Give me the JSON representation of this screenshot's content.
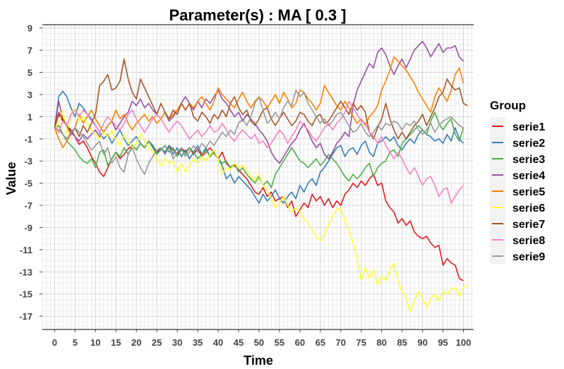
{
  "chart_data": {
    "type": "line",
    "title": "Parameter(s) :  MA [ 0.3 ]",
    "xlabel": "Time",
    "ylabel": "Value",
    "xlim": [
      -3,
      102.5
    ],
    "ylim": [
      -18.2,
      9.3
    ],
    "x_ticks": [
      0,
      5,
      10,
      15,
      20,
      25,
      30,
      35,
      40,
      45,
      50,
      55,
      60,
      65,
      70,
      75,
      80,
      85,
      90,
      95,
      100
    ],
    "y_ticks": [
      9,
      7,
      5,
      3,
      1,
      -1,
      -3,
      -5,
      -7,
      -9,
      -11,
      -13,
      -15,
      -17
    ],
    "grid": true,
    "legend": {
      "title": "Group",
      "placement": "right"
    },
    "x_start": 0,
    "x_step": 1,
    "series": [
      {
        "name": "serie1",
        "color": "#E41A1C",
        "values": [
          0,
          1.2,
          0.6,
          0.2,
          -0.2,
          -0.8,
          -1.5,
          -1.2,
          -1.8,
          -2.6,
          -3.2,
          -4,
          -4.4,
          -3.6,
          -2.8,
          -2.2,
          -2.8,
          -2.4,
          -1.9,
          -1.6,
          -2,
          -1.4,
          -1.8,
          -1.2,
          -1.6,
          -2.2,
          -1.8,
          -2.3,
          -1.6,
          -2,
          -2.4,
          -1.8,
          -2.2,
          -1.8,
          -2.4,
          -1.9,
          -2.6,
          -2.2,
          -1.8,
          -2.3,
          -2.8,
          -2.2,
          -3.2,
          -3.6,
          -3.4,
          -3.8,
          -4.2,
          -4.6,
          -5.2,
          -5.8,
          -6,
          -5.4,
          -6.2,
          -5.8,
          -6.6,
          -6.4,
          -6.2,
          -7.2,
          -6.6,
          -8,
          -7.4,
          -6.8,
          -7.2,
          -6,
          -6.6,
          -6.2,
          -7,
          -6.4,
          -7.2,
          -6.6,
          -7,
          -6,
          -5.6,
          -5,
          -5.4,
          -4.8,
          -5.2,
          -4.6,
          -4.2,
          -5.2,
          -5,
          -6.6,
          -7.2,
          -7.6,
          -8.6,
          -8.2,
          -8.8,
          -8.4,
          -9.4,
          -9.8,
          -10,
          -9.8,
          -10.4,
          -10.8,
          -10.6,
          -12.4,
          -11.8,
          -12.2,
          -12.4,
          -13.6,
          -13.8
        ]
      },
      {
        "name": "serie2",
        "color": "#377EB8",
        "values": [
          0,
          2.8,
          3.3,
          2.8,
          1.8,
          1,
          2.2,
          1.8,
          1.2,
          0.8,
          0.2,
          -0.4,
          -1,
          -0.6,
          -1.4,
          -0.8,
          -0.2,
          -1,
          -1.6,
          -1.2,
          -0.8,
          -1.4,
          -1.8,
          -1.2,
          -1.6,
          -2.4,
          -1.8,
          -2.2,
          -1.6,
          -2.4,
          -1.8,
          -2.6,
          -2,
          -2.8,
          -2.2,
          -1.6,
          -2.4,
          -1.8,
          -2.6,
          -2.2,
          -2.8,
          -3.4,
          -4.6,
          -4.2,
          -5,
          -4.4,
          -4.8,
          -5.2,
          -5.6,
          -6.2,
          -6.8,
          -6,
          -6.6,
          -6.2,
          -5.6,
          -6.4,
          -6.8,
          -6.2,
          -5.8,
          -6.4,
          -5.2,
          -5.8,
          -5,
          -4.6,
          -5.2,
          -4,
          -3.6,
          -3,
          -2.4,
          -1.8,
          -1.6,
          -2.6,
          -2,
          -1.8,
          -2.4,
          -1.6,
          -1.2,
          -2.2,
          -2.6,
          -1.4,
          -1.2,
          -0.8,
          -1.2,
          -0.8,
          -1.6,
          -2,
          -1.4,
          -1,
          -1.4,
          -0.6,
          -0.2,
          -0.6,
          -0.8,
          -1.2,
          -1,
          -1.4,
          -0.6,
          -1.2,
          0,
          -1,
          -1.4
        ]
      },
      {
        "name": "serie3",
        "color": "#4DAF4A",
        "values": [
          0,
          0.2,
          -0.6,
          -1.2,
          -1.6,
          -2,
          -2.6,
          -3,
          -3.2,
          -2.8,
          -3.6,
          -2.2,
          -2,
          -3.4,
          -2.8,
          -2.2,
          -2.6,
          -1.8,
          -2.4,
          -1.6,
          -2,
          -1.4,
          -1.8,
          -1.2,
          -1.8,
          -2.4,
          -2,
          -1.6,
          -2.2,
          -1.8,
          -2.6,
          -2,
          -2.4,
          -1.8,
          -2.2,
          -2.8,
          -2.4,
          -2,
          -2.6,
          -2.2,
          -2.8,
          -3.2,
          -3,
          -3.6,
          -3.2,
          -4,
          -3.6,
          -4.2,
          -4.6,
          -5,
          -4.4,
          -5.2,
          -4.8,
          -5.4,
          -4.2,
          -3.6,
          -3,
          -2.4,
          -1.8,
          -2.4,
          -3,
          -3.2,
          -3.6,
          -3.2,
          -2.8,
          -3.4,
          -3,
          -2.4,
          -2.8,
          -3.2,
          -3.8,
          -4.4,
          -4.8,
          -4.2,
          -4.6,
          -4.2,
          -3.6,
          -3.2,
          -4.4,
          -3.6,
          -3.2,
          -3,
          -2.2,
          -2,
          -2.6,
          -1.4,
          -1,
          -0.6,
          -0.2,
          0.2,
          -0.2,
          -0.6,
          0.6,
          1.4,
          0.4,
          -0.2,
          0.4,
          0.8,
          -0.6,
          -1.2,
          0
        ]
      },
      {
        "name": "serie4",
        "color": "#984EA3",
        "values": [
          0,
          2.4,
          0.8,
          0.2,
          -0.4,
          -0.8,
          -1.2,
          -0.6,
          -1,
          -0.6,
          -0.2,
          -0.8,
          -0.4,
          0.2,
          0.6,
          -0.2,
          0.4,
          1,
          1.4,
          2.4,
          2,
          2.6,
          1.8,
          2.2,
          1.6,
          1.2,
          0.8,
          1.4,
          0.6,
          1,
          1.6,
          2.2,
          2.8,
          2.2,
          1.6,
          2.4,
          1.8,
          2.6,
          2.2,
          2.8,
          3.4,
          2.6,
          2.2,
          1.6,
          1,
          1.4,
          0.6,
          1.2,
          0.8,
          0.4,
          -0.2,
          -0.6,
          -1.2,
          -2.2,
          -2.8,
          -3.2,
          -2.6,
          -2,
          -1.4,
          -1,
          -0.2,
          0.4,
          -0.4,
          -1.2,
          -1.8,
          -1.4,
          -2.4,
          -2.8,
          -2.2,
          -1.4,
          -1,
          -0.4,
          -0.8,
          2,
          3.4,
          4.2,
          5,
          5.8,
          5.4,
          6.8,
          7.2,
          6.6,
          5.6,
          4.8,
          5.6,
          6.2,
          5.4,
          6.2,
          7,
          7.4,
          7.8,
          7.2,
          6.4,
          7,
          7.6,
          6.8,
          7.2,
          7.2,
          7.4,
          6.4,
          6
        ]
      },
      {
        "name": "serie5",
        "color": "#FF7F00",
        "values": [
          0,
          -1,
          -1.8,
          -1.2,
          -0.6,
          0,
          1.2,
          0.4,
          1,
          1.6,
          0.8,
          0.2,
          -0.4,
          0.2,
          0.6,
          1.6,
          0.8,
          1.2,
          0.4,
          -0.2,
          0.4,
          0.8,
          1.2,
          0.6,
          1,
          0.4,
          0.8,
          1.4,
          0.8,
          1.2,
          1.6,
          2.2,
          1.6,
          2.2,
          1.8,
          2.4,
          2.8,
          2.2,
          1.6,
          2.4,
          3.6,
          3,
          2.6,
          2.2,
          1.8,
          2.6,
          3.2,
          2.4,
          1.8,
          2.4,
          2.8,
          2.4,
          1.8,
          2.4,
          3,
          2.2,
          3.2,
          2.6,
          1.8,
          2.2,
          3.4,
          3.2,
          2.6,
          2.2,
          1.6,
          2.2,
          3.8,
          3.2,
          2.6,
          2,
          1.6,
          2.4,
          1.8,
          1,
          0.4,
          0.8,
          0.2,
          1,
          1.4,
          2,
          3.4,
          4.2,
          5.2,
          6.4,
          6,
          5.6,
          5.2,
          4.6,
          4,
          3.2,
          2.6,
          2,
          1.4,
          2.8,
          3.6,
          3,
          2.4,
          3.4,
          4.8,
          5.4,
          4
        ]
      },
      {
        "name": "serie6",
        "color": "#FFFF33",
        "values": [
          0,
          0.4,
          1.6,
          -0.6,
          1.2,
          1.8,
          0.6,
          1,
          0.4,
          -0.2,
          -0.6,
          -1,
          -0.4,
          -0.8,
          -0.2,
          -1.2,
          -1.6,
          -0.6,
          -1.2,
          -1.8,
          -1.4,
          -0.6,
          -1.2,
          -1.8,
          -2.2,
          -2.8,
          -3.4,
          -2.8,
          -3.2,
          -3,
          -4,
          -3.2,
          -4,
          -3.4,
          -2.8,
          -3.2,
          -2.6,
          -3,
          -2.4,
          -2,
          -2.8,
          -4.2,
          -3.6,
          -3.8,
          -3.2,
          -3.6,
          -3.4,
          -3.8,
          -4.4,
          -4.8,
          -4.2,
          -5.2,
          -5.6,
          -6.4,
          -7.2,
          -6.8,
          -6.2,
          -7,
          -7.6,
          -7.2,
          -7.6,
          -8.2,
          -8.6,
          -9.2,
          -9.8,
          -10.2,
          -9.6,
          -8.8,
          -8,
          -7.4,
          -7.2,
          -8.4,
          -9.2,
          -10.4,
          -11.8,
          -13.8,
          -12.6,
          -13.6,
          -12.8,
          -14.2,
          -13.4,
          -13.8,
          -12.8,
          -12.2,
          -13.8,
          -14.8,
          -15.4,
          -16.6,
          -15.6,
          -14.8,
          -15.4,
          -16.2,
          -15.4,
          -15,
          -15.6,
          -14.8,
          -15,
          -14.6,
          -14.4,
          -15.2,
          -14.4,
          -14.2
        ]
      },
      {
        "name": "serie7",
        "color": "#A65628",
        "values": [
          0,
          1.4,
          0.8,
          0.2,
          -0.6,
          0,
          -0.8,
          0.2,
          -0.4,
          0.4,
          1.2,
          3.8,
          4.2,
          4.8,
          3.4,
          3.6,
          4.2,
          6.2,
          4.4,
          3.2,
          2.6,
          4.4,
          3.6,
          2.8,
          2,
          1.2,
          2.2,
          1.4,
          0.8,
          1.6,
          1.2,
          2.2,
          1.6,
          2.2,
          1,
          0.6,
          1.4,
          1,
          0.4,
          1.2,
          0.8,
          1.6,
          1,
          2.2,
          2.8,
          1.8,
          1.2,
          1.6,
          0.6,
          0.2,
          0.8,
          1.6,
          1.8,
          0.8,
          0.2,
          0.8,
          1.4,
          0.8,
          0.2,
          0.6,
          1.4,
          1.2,
          0.6,
          0.2,
          1,
          1.2,
          0.4,
          0.6,
          1.2,
          1.8,
          2.4,
          1.8,
          1.2,
          2.2,
          1.6,
          2,
          1.4,
          -0.4,
          -1,
          0,
          0.8,
          2.2,
          0.8,
          -0.2,
          -1,
          -0.4,
          -1,
          -0.4,
          0.2,
          0.6,
          1.2,
          0.2,
          1,
          1.8,
          2.8,
          3.2,
          4.4,
          3.8,
          3.4,
          3.6,
          2.2,
          2
        ]
      },
      {
        "name": "serie8",
        "color": "#F781BF",
        "values": [
          0,
          -0.4,
          0.6,
          0.2,
          1.2,
          1.6,
          1,
          1.6,
          1.2,
          0.6,
          0.2,
          -0.4,
          0.4,
          1,
          0.6,
          0.2,
          -0.2,
          0.4,
          1.2,
          1.6,
          0.8,
          0.2,
          -0.4,
          0.2,
          0.8,
          1.2,
          0.8,
          0.2,
          -0.4,
          0.2,
          0.6,
          0.2,
          -0.4,
          -1,
          -0.6,
          -0.2,
          -0.8,
          -0.4,
          0.2,
          -0.4,
          -0.2,
          0.4,
          -0.2,
          -0.8,
          -1.2,
          -0.6,
          -0.2,
          -0.6,
          -1,
          -0.6,
          -1.4,
          -1.2,
          -1.8,
          -1.4,
          -0.8,
          -0.2,
          -0.6,
          -1.4,
          -0.8,
          -0.2,
          0.6,
          0.2,
          -0.2,
          -0.8,
          -1.2,
          -0.6,
          0,
          0.4,
          -0.2,
          0.4,
          0.8,
          1.4,
          2.4,
          1.8,
          1.2,
          0.6,
          0.4,
          -0.4,
          -0.8,
          -1.4,
          -0.8,
          -1.6,
          -2.2,
          -2.8,
          -2.2,
          -2.8,
          -3.6,
          -4.2,
          -3.6,
          -4.4,
          -5.2,
          -4.6,
          -4.4,
          -5.2,
          -6.2,
          -5.6,
          -5.4,
          -6.8,
          -6.2,
          -5.6,
          -5.2
        ]
      },
      {
        "name": "serie9",
        "color": "#999999",
        "values": [
          0,
          -0.2,
          -0.6,
          -1,
          -0.4,
          0,
          -0.4,
          -0.8,
          -1.4,
          -2,
          -1.6,
          -1.2,
          -2.4,
          -1.8,
          -3.2,
          -2.6,
          -3.6,
          -4,
          -2.4,
          -1.8,
          -2.8,
          -3.6,
          -4.2,
          -3.2,
          -2.6,
          -2,
          -1.8,
          -2.4,
          -1.8,
          -2.8,
          -2.2,
          -1.8,
          -2.6,
          -2.2,
          -1.6,
          -2.2,
          -1.4,
          -1.8,
          -1.2,
          -1.6,
          -1,
          -0.4,
          -0.8,
          -0.2,
          -0.6,
          0.4,
          0.8,
          0.2,
          1,
          2.2,
          2.8,
          1.6,
          0.4,
          0.8,
          1.4,
          0.8,
          1.8,
          2.4,
          2,
          3.4,
          2.8,
          3.2,
          2.2,
          1.6,
          1,
          0.4,
          0.8,
          0.2,
          0.6,
          1.2,
          1.4,
          0.8,
          0.2,
          -0.4,
          -0.2,
          0.4,
          -0.4,
          -0.8,
          -0.4,
          0.2,
          -0.2,
          0.4,
          0.2,
          0.6,
          0.4,
          -0.2,
          0.4,
          0.2,
          0.6,
          -0.2,
          -0.6,
          -0.2,
          0.4,
          -0.4,
          0.2,
          0.6,
          0.8,
          1,
          0.6,
          0.2,
          0
        ]
      }
    ]
  }
}
